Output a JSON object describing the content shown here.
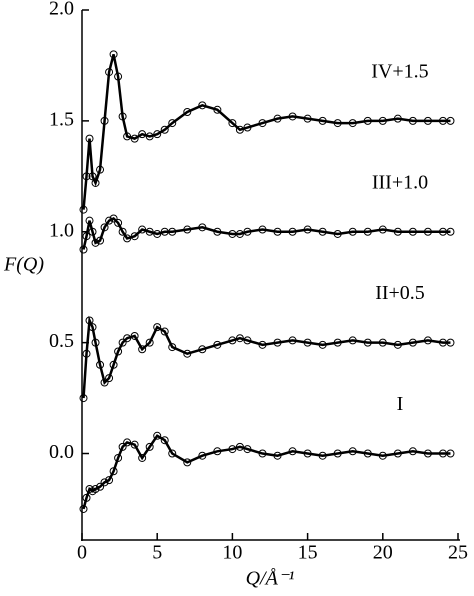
{
  "chart_data": {
    "type": "line",
    "xlabel": "Q/Å⁻¹",
    "ylabel": "F(Q)",
    "x": [
      0.1,
      0.3,
      0.5,
      0.7,
      0.9,
      1.2,
      1.5,
      1.8,
      2.1,
      2.4,
      2.7,
      3.0,
      3.5,
      4,
      4.5,
      5,
      5.5,
      6,
      7,
      8,
      9,
      10,
      10.5,
      11,
      12,
      13,
      14,
      15,
      16,
      17,
      18,
      19,
      20,
      21,
      22,
      23,
      24,
      24.5
    ],
    "series": [
      {
        "name": "IV+1.5",
        "color": "#000000",
        "values": [
          1.1,
          1.25,
          1.42,
          1.25,
          1.22,
          1.28,
          1.5,
          1.72,
          1.8,
          1.7,
          1.52,
          1.43,
          1.42,
          1.44,
          1.43,
          1.44,
          1.46,
          1.49,
          1.54,
          1.57,
          1.55,
          1.49,
          1.46,
          1.47,
          1.49,
          1.51,
          1.52,
          1.51,
          1.5,
          1.49,
          1.49,
          1.5,
          1.5,
          1.51,
          1.5,
          1.5,
          1.5,
          1.5
        ]
      },
      {
        "name": "III+1.0",
        "color": "#000000",
        "values": [
          0.92,
          0.98,
          1.05,
          1.0,
          0.95,
          0.96,
          1.02,
          1.05,
          1.06,
          1.04,
          1.0,
          0.97,
          0.98,
          1.01,
          1.0,
          0.99,
          1.0,
          1.0,
          1.01,
          1.02,
          1.0,
          0.99,
          0.99,
          1.0,
          1.01,
          1.0,
          1.0,
          1.01,
          1.0,
          0.99,
          1.0,
          1.0,
          1.01,
          1.0,
          1.0,
          1.0,
          1.0,
          1.0
        ]
      },
      {
        "name": "II+0.5",
        "color": "#000000",
        "values": [
          0.25,
          0.45,
          0.6,
          0.57,
          0.5,
          0.4,
          0.32,
          0.34,
          0.4,
          0.46,
          0.5,
          0.52,
          0.53,
          0.47,
          0.5,
          0.57,
          0.55,
          0.48,
          0.45,
          0.47,
          0.49,
          0.51,
          0.52,
          0.51,
          0.49,
          0.5,
          0.51,
          0.5,
          0.49,
          0.5,
          0.51,
          0.5,
          0.5,
          0.49,
          0.5,
          0.51,
          0.5,
          0.5
        ]
      },
      {
        "name": "I",
        "color": "#000000",
        "values": [
          -0.25,
          -0.2,
          -0.16,
          -0.17,
          -0.16,
          -0.15,
          -0.13,
          -0.12,
          -0.08,
          -0.02,
          0.03,
          0.05,
          0.04,
          -0.02,
          0.03,
          0.08,
          0.06,
          0.0,
          -0.04,
          -0.01,
          0.01,
          0.02,
          0.03,
          0.02,
          0.0,
          -0.01,
          0.01,
          0.0,
          -0.01,
          0.0,
          0.01,
          0.0,
          -0.01,
          0.0,
          0.01,
          0.0,
          0.0,
          0.0
        ]
      }
    ],
    "marker": "circle",
    "xlim": [
      0,
      25
    ],
    "ylim": [
      -0.39,
      2.0
    ],
    "xticks": [
      0,
      5,
      10,
      15,
      20,
      25
    ],
    "yticks": [
      {
        "value": 0,
        "label": "0.0"
      },
      0.5,
      {
        "value": 1,
        "label": "1.0"
      },
      1.5,
      {
        "value": 2,
        "label": "2.0"
      }
    ]
  }
}
